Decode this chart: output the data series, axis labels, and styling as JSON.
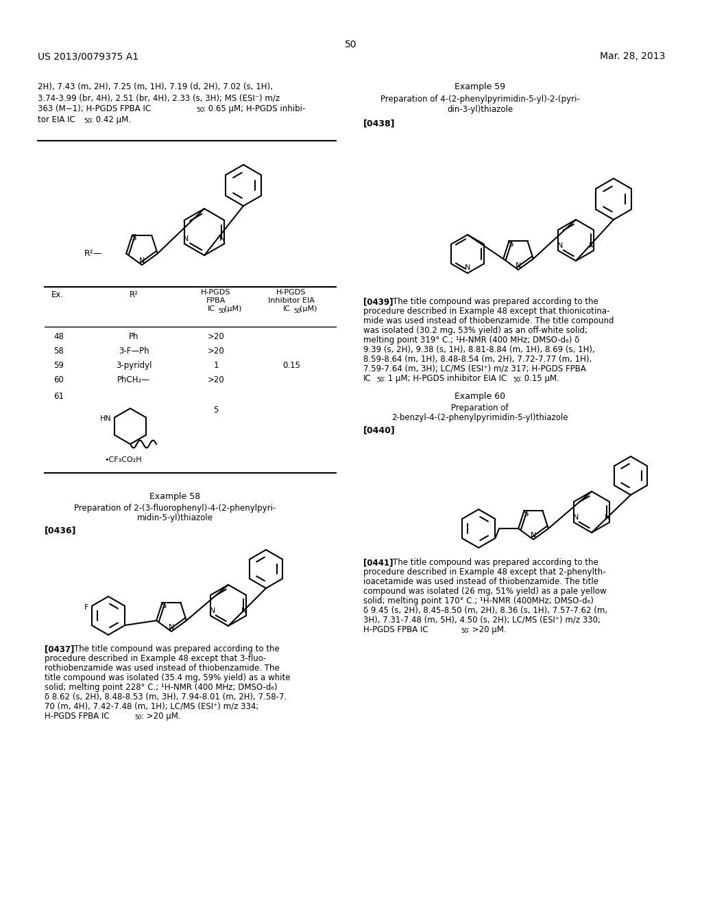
{
  "page_number": "50",
  "patent_number": "US 2013/0079375 A1",
  "patent_date": "Mar. 28, 2013",
  "background_color": "#ffffff",
  "top_left_line1": "2H), 7.43 (m, 2H), 7.25 (m, 1H), 7.19 (d, 2H), 7.02 (s, 1H),",
  "top_left_line2": "3.74-3.99 (br, 4H), 2.51 (br, 4H), 2.33 (s, 3H); MS (ESI⁻) m/z",
  "top_left_line3a": "363 (M−1); H-PGDS FPBA IC",
  "top_left_line3b": ": 0.65 μM; H-PGDS inhibi-",
  "top_left_line4a": "tor EIA IC",
  "top_left_line4b": ": 0.42 μM.",
  "ex59_header": "Example 59",
  "ex59_title1": "Preparation of 4-(2-phenylpyrimidin-5-yl)-2-(pyri-",
  "ex59_title2": "din-3-yl)thiazole",
  "ex59_tag": "[0438]",
  "ex59_p1": "[0439]",
  "ex59_p2": "The title compound was prepared according to the",
  "ex59_p3": "procedure described in Example 48 except that thionicotina-",
  "ex59_p4": "mide was used instead of thiobenzamide. The title compound",
  "ex59_p5": "was isolated (30.2 mg, 53% yield) as an off-white solid;",
  "ex59_p6": "melting point 319° C.; ¹H-NMR (400 MHz; DMSO-d₆) δ",
  "ex59_p7": "9.39 (s, 2H), 9.38 (s, 1H), 8.81-8.84 (m, 1H), 8.69 (s, 1H),",
  "ex59_p8": "8.59-8.64 (m, 1H), 8.48-8.54 (m, 2H), 7.72-7.77 (m, 1H),",
  "ex59_p9": "7.59-7.64 (m, 3H); LC/MS (ESI⁺) m/z 317; H-PGDS FPBA",
  "ex59_p10a": "IC",
  "ex59_p10b": ": 1 μM; H-PGDS inhibitor EIA IC",
  "ex59_p10c": ": 0.15 μM.",
  "ex60_header": "Example 60",
  "ex60_title1": "Preparation of",
  "ex60_title2": "2-benzyl-4-(2-phenylpyrimidin-5-yl)thiazole",
  "ex60_tag": "[0440]",
  "ex60_p1": "[0441]",
  "ex60_p2": "The title compound was prepared according to the",
  "ex60_p3": "procedure described in Example 48 except that 2-phenylth-",
  "ex60_p4": "ioacetamide was used instead of thiobenzamide. The title",
  "ex60_p5": "compound was isolated (26 mg, 51% yield) as a pale yellow",
  "ex60_p6": "solid; melting point 170° C.; ¹H-NMR (400MHz; DMSO-d₆)",
  "ex60_p7": "δ 9.45 (s, 2H), 8.45-8.50 (m, 2H), 8.36 (s, 1H), 7.57-7.62 (m,",
  "ex60_p8": "3H), 7.31-7.48 (m, 5H), 4.50 (s, 2H); LC/MS (ESI⁺) m/z 330;",
  "ex60_p9a": "H-PGDS FPBA IC",
  "ex60_p9b": ": >20 μM.",
  "ex58_header": "Example 58",
  "ex58_title1": "Preparation of 2-(3-fluorophenyl)-4-(2-phenylpyri-",
  "ex58_title2": "midin-5-yl)thiazole",
  "ex58_tag": "[0436]",
  "ex58_p1": "[0437]",
  "ex58_p2": "The title compound was prepared according to the",
  "ex58_p3": "procedure described in Example 48 except that 3-fluo-",
  "ex58_p4": "rothiobenzamide was used instead of thiobenzamide. The",
  "ex58_p5": "title compound was isolated (35.4 mg, 59% yield) as a white",
  "ex58_p6": "solid; melting point 228° C.; ¹H-NMR (400 MHz; DMSO-d₆)",
  "ex58_p7": "δ 8.62 (s, 2H), 8.48-8.53 (m, 3H), 7.94-8.01 (m, 2H), 7.58-7.",
  "ex58_p8": "70 (m, 4H), 7.42-7.48 (m, 1H); LC/MS (ESI⁺) m/z 334;",
  "ex58_p9a": "H-PGDS FPBA IC",
  "ex58_p9b": ": >20 μM.",
  "tbl_col1": "Ex.",
  "tbl_col2": "R²",
  "tbl_col3a": "H-PGDS",
  "tbl_col3b": "FPBA",
  "tbl_col3c": "IC",
  "tbl_col3d": "(μM)",
  "tbl_col4a": "H-PGDS",
  "tbl_col4b": "Inhibitor EIA",
  "tbl_col4c": "IC",
  "tbl_col4d": "(μM)",
  "tbl_r1": [
    "48",
    "Ph",
    ">20",
    ""
  ],
  "tbl_r2": [
    "58",
    "3-F—Ph",
    ">20",
    ""
  ],
  "tbl_r3": [
    "59",
    "3-pyridyl",
    "1",
    "0.15"
  ],
  "tbl_r4": [
    "60",
    "PhCH₂—",
    ">20",
    ""
  ],
  "tbl_r5_ex": "61",
  "tbl_r5_ic": "5",
  "tbl_hn": "HN",
  "tbl_cf": "•CF₃CO₂H"
}
